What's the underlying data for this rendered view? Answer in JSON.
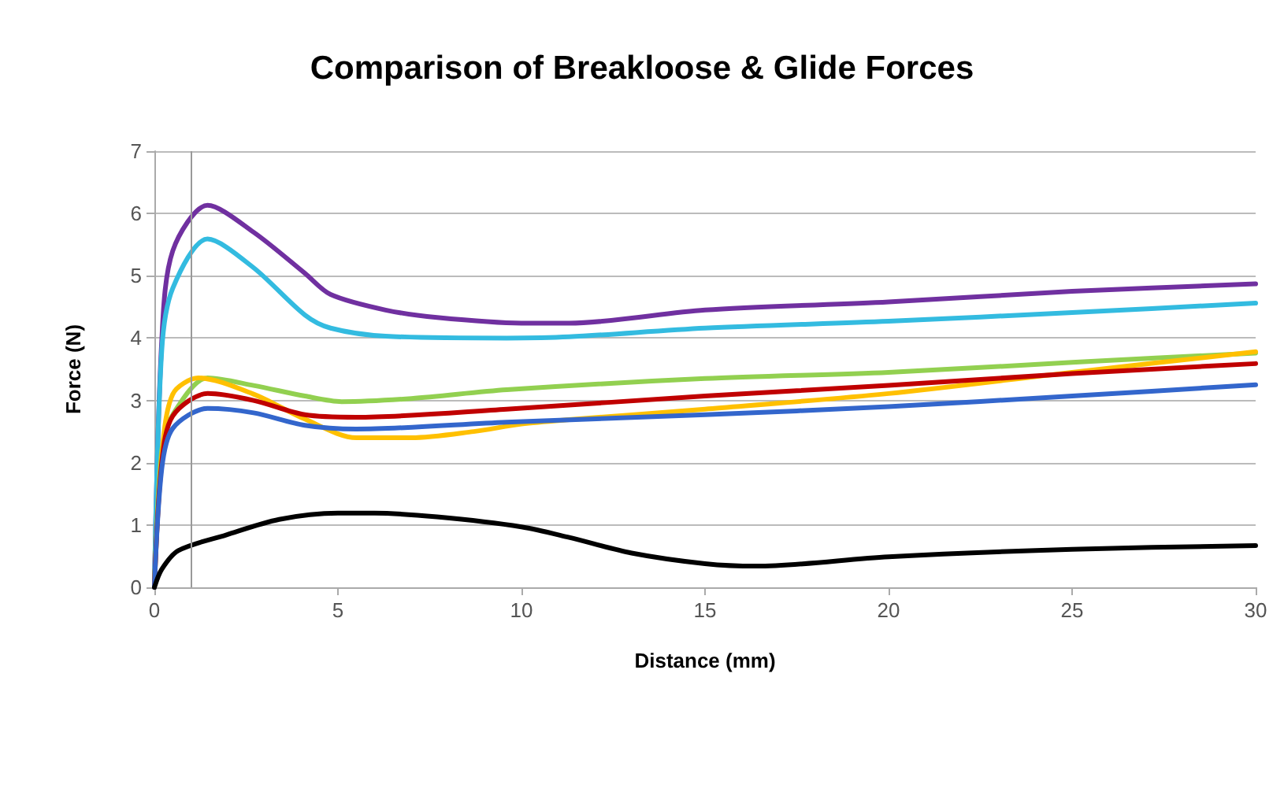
{
  "chart_data": {
    "type": "line",
    "title": "Comparison of Breakloose & Glide Forces",
    "xlabel": "Distance (mm)",
    "ylabel": "Force (N)",
    "xlim": [
      0,
      30
    ],
    "xticks": [
      0,
      5,
      10,
      15,
      20,
      25,
      30
    ],
    "ylim": [
      0,
      7
    ],
    "yticks": [
      0,
      1,
      2,
      3,
      4,
      5,
      6,
      7
    ],
    "grid": "y",
    "marker": "none",
    "line_style": "solid",
    "ref_lines": [
      {
        "axis": "x",
        "value": 1,
        "color": "#999999"
      }
    ],
    "series": [
      {
        "color": "#7030a0",
        "x": [
          0,
          0.2,
          0.5,
          1.45,
          2.7,
          4.1,
          4.8,
          6.3,
          7.7,
          10,
          11.3,
          15,
          20,
          25,
          30
        ],
        "values": [
          0,
          3.95,
          5.4,
          6.13,
          5.7,
          5.04,
          4.7,
          4.45,
          4.33,
          4.24,
          4.24,
          4.45,
          4.58,
          4.75,
          4.87
        ]
      },
      {
        "color": "#33bbe0",
        "x": [
          0,
          0.2,
          0.5,
          1.45,
          2.7,
          4.1,
          4.8,
          6.3,
          9.6,
          11.3,
          15,
          20,
          25,
          30
        ],
        "values": [
          0,
          3.8,
          4.8,
          5.59,
          5.13,
          4.37,
          4.16,
          4.03,
          4.0,
          4.02,
          4.16,
          4.27,
          4.41,
          4.56
        ]
      },
      {
        "color": "#92d050",
        "x": [
          0,
          0.2,
          0.5,
          1.45,
          2.7,
          4.1,
          5.1,
          7,
          9.6,
          15,
          20,
          25,
          30
        ],
        "values": [
          0,
          2.2,
          2.77,
          3.36,
          3.24,
          3.07,
          2.98,
          3.03,
          3.17,
          3.35,
          3.45,
          3.61,
          3.76
        ]
      },
      {
        "color": "#ffc000",
        "x": [
          0,
          0.2,
          0.5,
          1.2,
          2.7,
          4.1,
          5.5,
          7,
          8.7,
          10,
          11.3,
          15,
          20,
          25,
          30
        ],
        "values": [
          0,
          2.1,
          3.1,
          3.36,
          3.1,
          2.7,
          2.4,
          2.4,
          2.5,
          2.62,
          2.69,
          2.86,
          3.11,
          3.45,
          3.78
        ]
      },
      {
        "color": "#c00000",
        "x": [
          0,
          0.2,
          0.5,
          1.45,
          2.7,
          4.1,
          5.5,
          9.6,
          15,
          20,
          25,
          30
        ],
        "values": [
          0,
          2.0,
          2.75,
          3.11,
          3.0,
          2.77,
          2.73,
          2.86,
          3.07,
          3.24,
          3.43,
          3.59
        ]
      },
      {
        "color": "#3366cc",
        "x": [
          0,
          0.2,
          0.5,
          1.45,
          2.7,
          4.1,
          5.5,
          9.6,
          15,
          20,
          25,
          30
        ],
        "values": [
          0,
          1.9,
          2.55,
          2.87,
          2.8,
          2.6,
          2.54,
          2.65,
          2.77,
          2.9,
          3.07,
          3.25
        ]
      },
      {
        "color": "#000000",
        "x": [
          0,
          0.2,
          0.65,
          1.95,
          3.4,
          5,
          6,
          7.7,
          10,
          11.3,
          13,
          15,
          16.4,
          20,
          25,
          30
        ],
        "values": [
          0,
          0.29,
          0.59,
          0.84,
          1.09,
          1.19,
          1.19,
          1.13,
          0.97,
          0.8,
          0.55,
          0.38,
          0.34,
          0.49,
          0.61,
          0.67
        ]
      }
    ]
  }
}
